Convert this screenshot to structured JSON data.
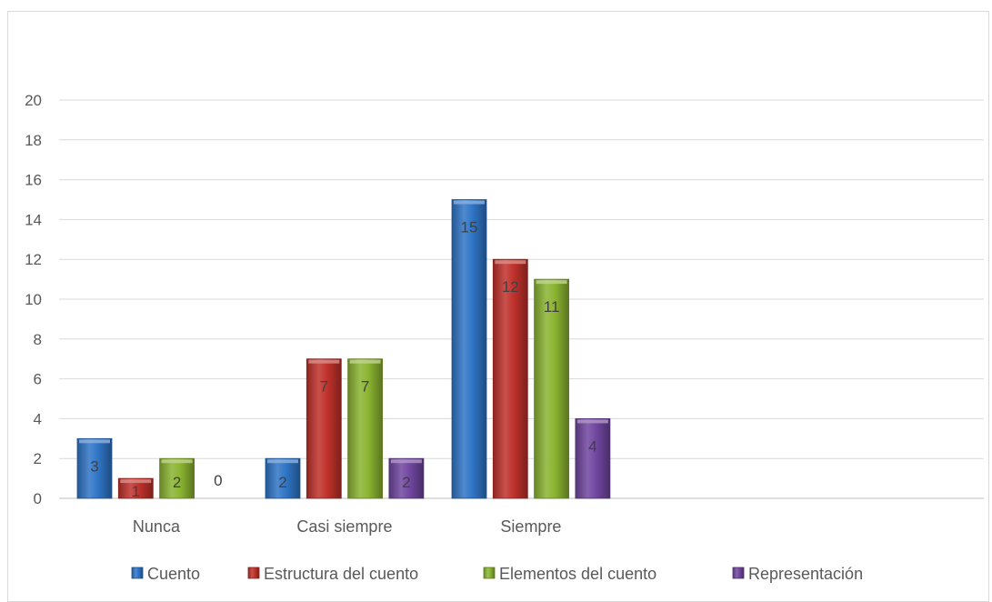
{
  "chart_data": {
    "type": "bar",
    "title": "",
    "xlabel": "",
    "ylabel": "",
    "categories": [
      "Nunca",
      "Casi siempre",
      "Siempre"
    ],
    "series": [
      {
        "name": "Cuento",
        "values": [
          3,
          2,
          15
        ],
        "color": "#2f75c6"
      },
      {
        "name": "Estructura del cuento",
        "values": [
          1,
          7,
          12
        ],
        "color": "#c0312b"
      },
      {
        "name": "Elementos del cuento",
        "values": [
          2,
          7,
          11
        ],
        "color": "#8bb431"
      },
      {
        "name": "Representación",
        "values": [
          0,
          2,
          4
        ],
        "color": "#7146a0"
      }
    ],
    "ylim": [
      0,
      20
    ],
    "yticks": [
      0,
      2,
      4,
      6,
      8,
      10,
      12,
      14,
      16,
      18,
      20
    ],
    "grid": true,
    "legend": "bottom",
    "data_labels": true
  }
}
